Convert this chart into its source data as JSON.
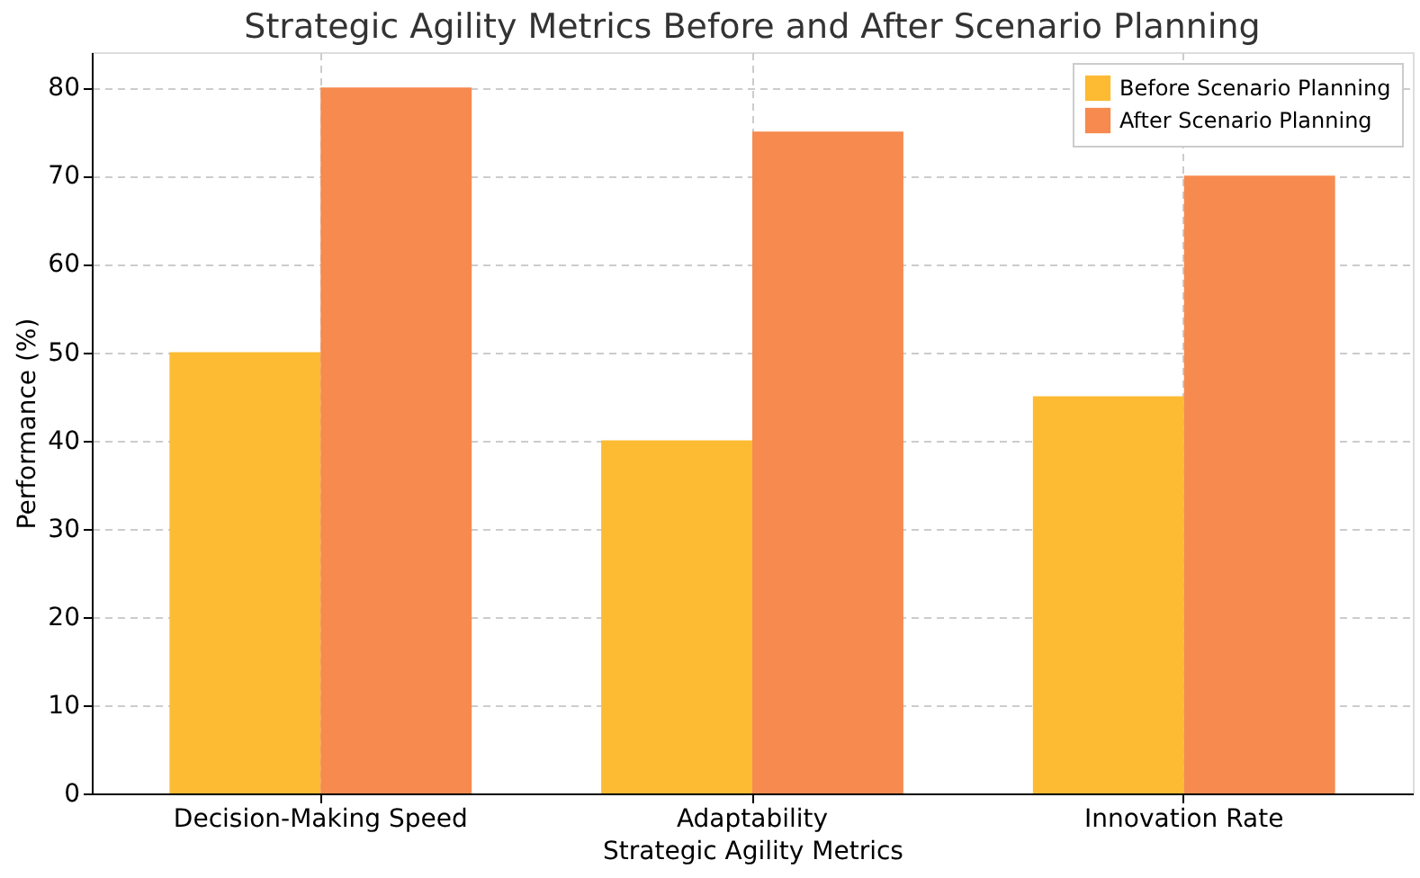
{
  "chart_data": {
    "type": "bar",
    "title": "Strategic Agility Metrics Before and After Scenario Planning",
    "xlabel": "Strategic Agility Metrics",
    "ylabel": "Performance (%)",
    "categories": [
      "Decision-Making Speed",
      "Adaptability",
      "Innovation Rate"
    ],
    "series": [
      {
        "name": "Before Scenario Planning",
        "color": "#fdbb33",
        "values": [
          50,
          40,
          45
        ]
      },
      {
        "name": "After Scenario Planning",
        "color": "#f68a4f",
        "values": [
          80,
          75,
          70
        ]
      }
    ],
    "ylim": [
      0,
      84
    ],
    "yticks": [
      0,
      10,
      20,
      30,
      40,
      50,
      60,
      70,
      80
    ],
    "grid": true,
    "legend": "top right"
  }
}
